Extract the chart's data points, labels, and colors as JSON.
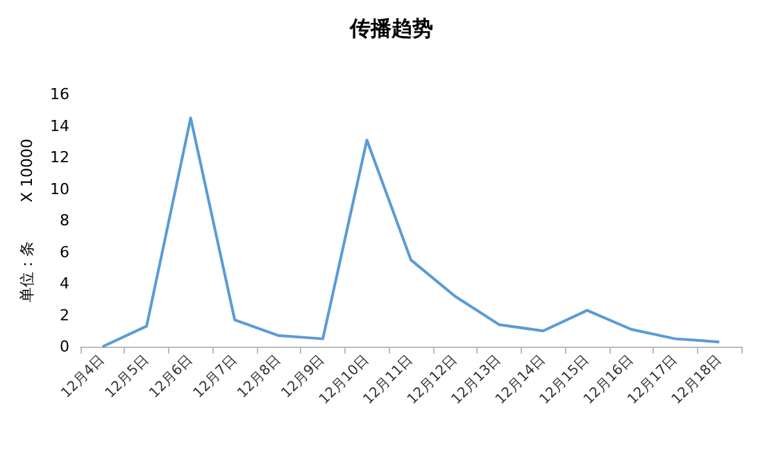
{
  "chart_data": {
    "type": "line",
    "title": "传播趋势",
    "ylabel": "单位：条        X 10000",
    "categories": [
      "12月4日",
      "12月5日",
      "12月6日",
      "12月7日",
      "12月8日",
      "12月9日",
      "12月10日",
      "12月11日",
      "12月12日",
      "12月13日",
      "12月14日",
      "12月15日",
      "12月16日",
      "12月17日",
      "12月18日"
    ],
    "series": [
      {
        "color": "#5b9bd5",
        "values": [
          0,
          1.3,
          14.5,
          1.7,
          0.7,
          0.5,
          13.1,
          5.5,
          3.2,
          1.4,
          1.0,
          2.3,
          1.1,
          0.5,
          0.3
        ]
      }
    ],
    "ylim": [
      0,
      16
    ],
    "yticks": [
      0,
      2,
      4,
      6,
      8,
      10,
      12,
      14,
      16
    ],
    "marker": "none",
    "line_style": "solid"
  }
}
